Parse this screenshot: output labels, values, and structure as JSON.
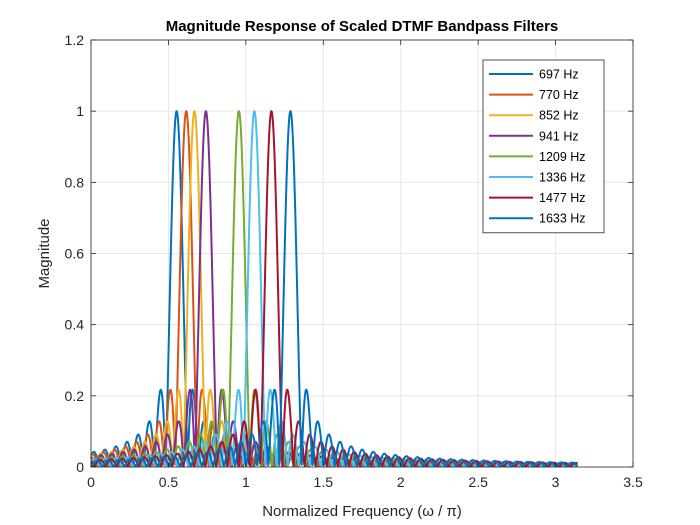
{
  "chart_data": {
    "type": "line",
    "title": "Magnitude Response of Scaled DTMF Bandpass Filters",
    "xlabel": "Normalized Frequency (ω / π)",
    "ylabel": "Magnitude",
    "xlim": [
      0,
      3.5
    ],
    "ylim": [
      0,
      1.2
    ],
    "xticks": [
      "0",
      "0.5",
      "1",
      "1.5",
      "2",
      "2.5",
      "3",
      "3.5"
    ],
    "yticks": [
      "0",
      "0.2",
      "0.4",
      "0.6",
      "0.8",
      "1",
      "1.2"
    ],
    "x_max_data": 3.1416,
    "grid": true,
    "legend_position": "top-right",
    "peak_magnitude": 1,
    "series": [
      {
        "name": "697 Hz",
        "center": 0.553,
        "color": "#0072BD"
      },
      {
        "name": "770 Hz",
        "center": 0.615,
        "color": "#D95319"
      },
      {
        "name": "852 Hz",
        "center": 0.668,
        "color": "#EDB120"
      },
      {
        "name": "941 Hz",
        "center": 0.742,
        "color": "#7E2F8E"
      },
      {
        "name": "1209 Hz",
        "center": 0.955,
        "color": "#77AC30"
      },
      {
        "name": "1336 Hz",
        "center": 1.055,
        "color": "#4DBEEE"
      },
      {
        "name": "1477 Hz",
        "center": 1.165,
        "color": "#A2142F"
      },
      {
        "name": "1633 Hz",
        "center": 1.288,
        "color": "#0072BD"
      }
    ]
  }
}
